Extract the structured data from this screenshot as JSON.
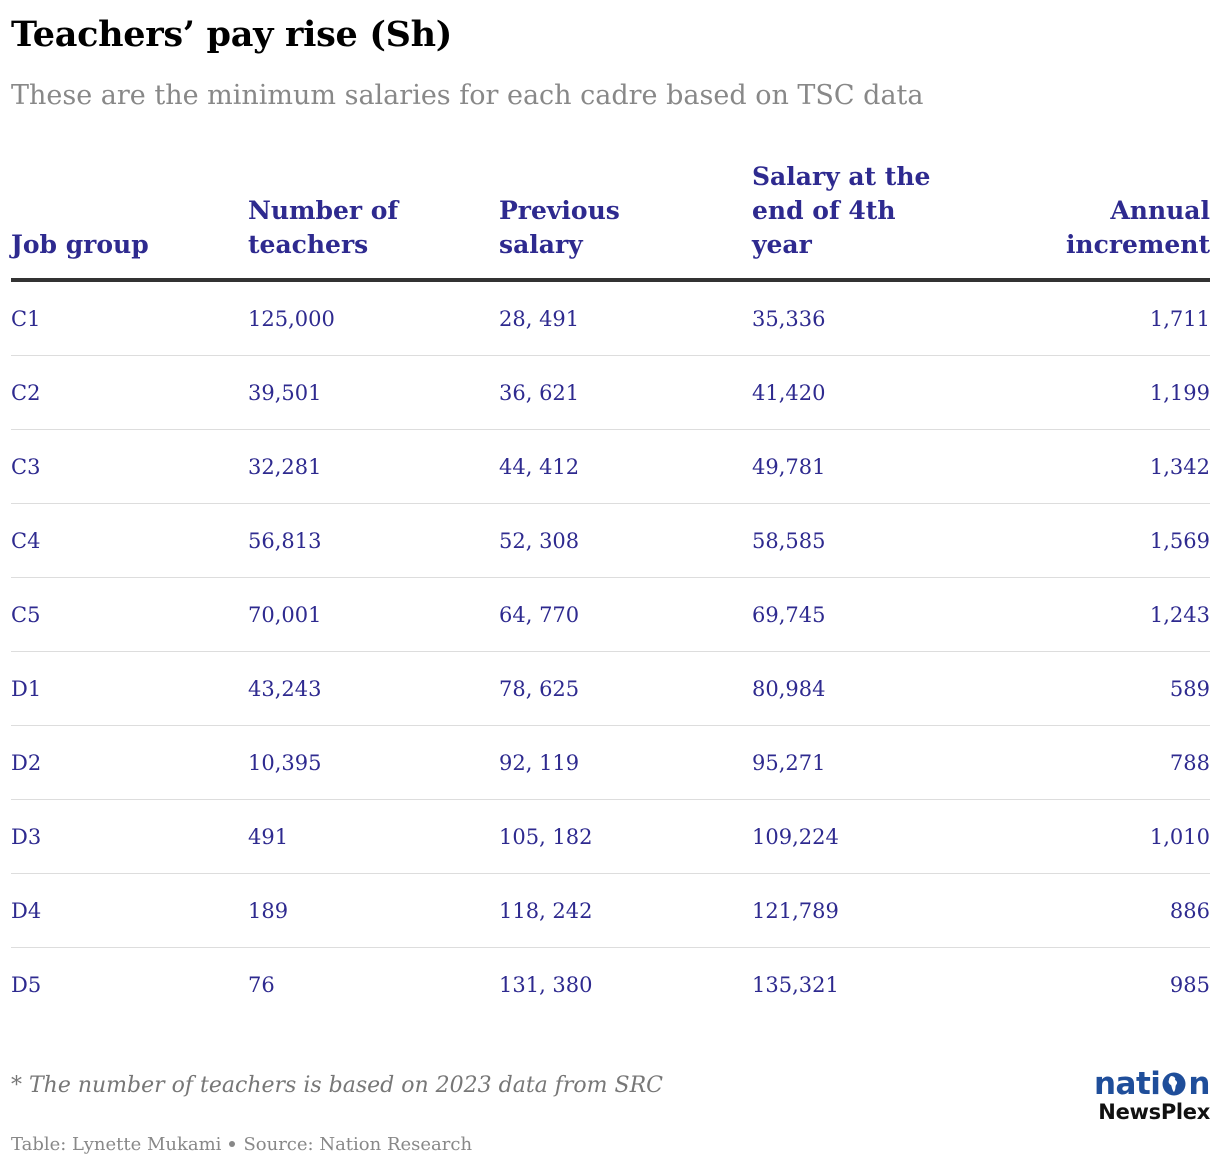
{
  "title": "Teachers’ pay rise (Sh)",
  "subtitle": "These are the minimum salaries for each cadre based on TSC data",
  "chart_data": {
    "type": "table",
    "columns": [
      "Job group",
      "Number of\nteachers",
      "Previous\nsalary",
      "Salary at the\nend of 4th\nyear",
      "Annual\nincrement"
    ],
    "rows": [
      [
        "C1",
        "125,000",
        "28, 491",
        "35,336",
        "1,711"
      ],
      [
        "C2",
        "39,501",
        "36, 621",
        "41,420",
        "1,199"
      ],
      [
        "C3",
        "32,281",
        "44, 412",
        "49,781",
        "1,342"
      ],
      [
        "C4",
        "56,813",
        "52, 308",
        "58,585",
        "1,569"
      ],
      [
        "C5",
        "70,001",
        "64, 770",
        "69,745",
        "1,243"
      ],
      [
        "D1",
        "43,243",
        "78, 625",
        "80,984",
        "589"
      ],
      [
        "D2",
        "10,395",
        "92, 119",
        "95,271",
        "788"
      ],
      [
        "D3",
        "491",
        "105, 182",
        "109,224",
        "1,010"
      ],
      [
        "D4",
        "189",
        "118, 242",
        "121,789",
        "886"
      ],
      [
        "D5",
        "76",
        "131, 380",
        "135,321",
        "985"
      ]
    ]
  },
  "footnote": "* The number of teachers is based on 2023 data from SRC",
  "credits": {
    "table_by": "Table: Lynette Mukami",
    "source": "Source: Nation Research"
  },
  "logo": {
    "top_left": "nati",
    "top_right": "n",
    "bottom": "NewsPlex"
  },
  "colors": {
    "text": "#2e2a8f",
    "title": "#000000",
    "logo_blue": "#1f4e9a"
  }
}
